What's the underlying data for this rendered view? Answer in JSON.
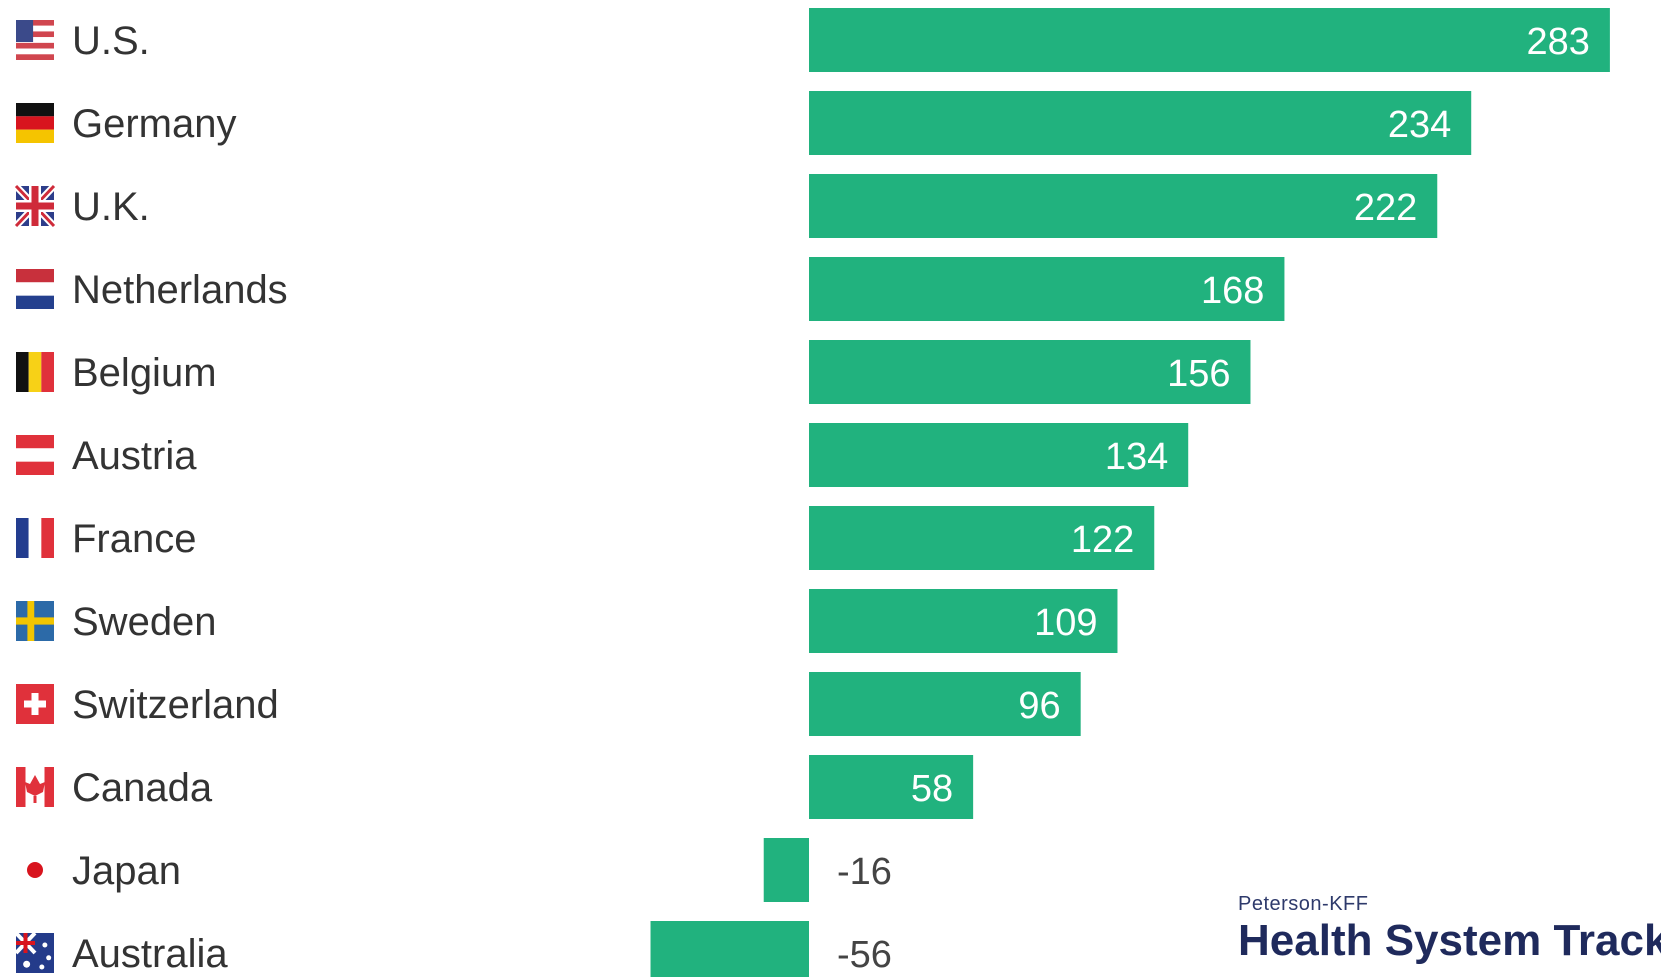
{
  "branding": {
    "subtitle": "Peterson-KFF",
    "title": "Health System Tracker"
  },
  "colors": {
    "bar": "#21b27e",
    "label_text": "#333333"
  },
  "chart_data": {
    "type": "bar",
    "orientation": "horizontal",
    "title": "",
    "xlabel": "",
    "ylabel": "",
    "categories": [
      "U.S.",
      "Germany",
      "U.K.",
      "Netherlands",
      "Belgium",
      "Austria",
      "France",
      "Sweden",
      "Switzerland",
      "Canada",
      "Japan",
      "Australia"
    ],
    "values": [
      283,
      234,
      222,
      168,
      156,
      134,
      122,
      109,
      96,
      58,
      -16,
      -56
    ],
    "value_labels": [
      "283",
      "234",
      "222",
      "168",
      "156",
      "134",
      "122",
      "109",
      "96",
      "58",
      "-16",
      "-56"
    ],
    "flag_icons": [
      "us-flag-icon",
      "germany-flag-icon",
      "uk-flag-icon",
      "netherlands-flag-icon",
      "belgium-flag-icon",
      "austria-flag-icon",
      "france-flag-icon",
      "sweden-flag-icon",
      "switzerland-flag-icon",
      "canada-flag-icon",
      "japan-flag-icon",
      "australia-flag-icon"
    ],
    "xlim": [
      -57,
      286
    ],
    "grid": false,
    "legend": "none"
  }
}
